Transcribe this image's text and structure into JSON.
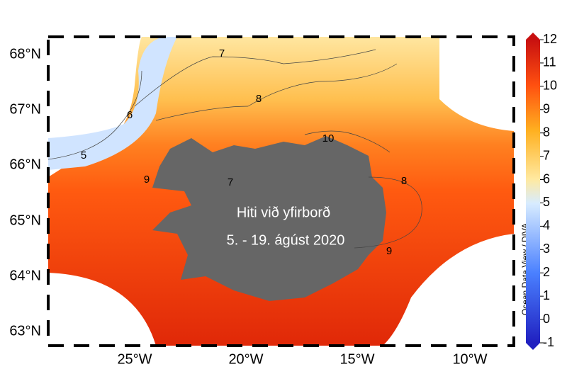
{
  "map": {
    "title_lines": [
      "Hiti við yfirborð",
      "5. - 19. ágúst 2020"
    ],
    "lat_labels": [
      "68°N",
      "67°N",
      "66°N",
      "65°N",
      "64°N",
      "63°N"
    ],
    "lon_labels": [
      "25°W",
      "20°W",
      "15°W",
      "10°W"
    ],
    "contour_labels": [
      "7",
      "8",
      "6",
      "5",
      "10",
      "8",
      "9",
      "7",
      "9"
    ],
    "credit": "Ocean Data View / DIVA",
    "colorbar": {
      "ticks": [
        12,
        11,
        10,
        9,
        8,
        7,
        6,
        5,
        4,
        3,
        2,
        1,
        0,
        -1
      ]
    }
  }
}
